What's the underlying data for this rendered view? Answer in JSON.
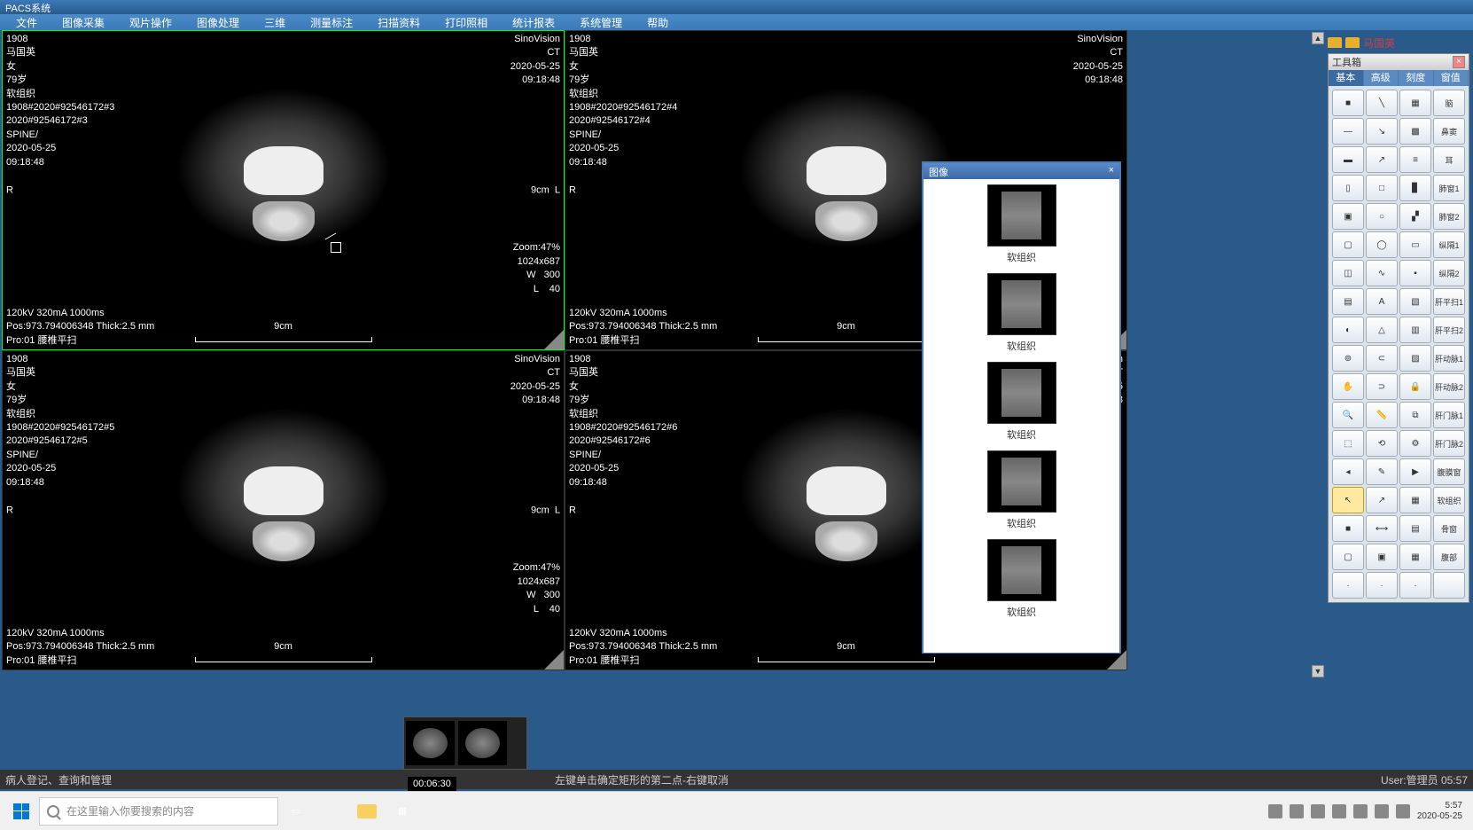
{
  "app": {
    "title": "PACS系统"
  },
  "menu": [
    "文件",
    "图像采集",
    "观片操作",
    "图像处理",
    "三维",
    "测量标注",
    "扫描资料",
    "打印照相",
    "统计报表",
    "系统管理",
    "帮助"
  ],
  "panels": [
    {
      "id": "1908",
      "patient": "马国英",
      "sex": "女",
      "age": "79岁",
      "tissue": "软组织",
      "series": "1908#2020#92546172#3",
      "study": "2020#92546172#3",
      "part": "SPINE/",
      "date": "2020-05-25",
      "time": "09:18:48",
      "vendor": "SinoVision",
      "modality": "CT",
      "scan_date": "2020-05-25",
      "scan_time": "09:18:48",
      "side_l": "R",
      "side_r": "9cm  L",
      "zoom": "Zoom:47%",
      "matrix": "1024x687",
      "ww": "W   300",
      "wl": "L    40",
      "tech": "120kV 320mA 1000ms",
      "pos": "Pos:973.794006348 Thick:2.5 mm",
      "proto": "Pro:01 腰椎平扫",
      "scale": "9cm"
    },
    {
      "id": "1908",
      "patient": "马国英",
      "sex": "女",
      "age": "79岁",
      "tissue": "软组织",
      "series": "1908#2020#92546172#4",
      "study": "2020#92546172#4",
      "part": "SPINE/",
      "date": "2020-05-25",
      "time": "09:18:48",
      "vendor": "SinoVision",
      "modality": "CT",
      "scan_date": "2020-05-25",
      "scan_time": "09:18:48",
      "side_l": "R",
      "side_r": "",
      "zoom": "",
      "matrix": "",
      "ww": "",
      "wl": "",
      "tech": "120kV 320mA 1000ms",
      "pos": "Pos:973.794006348 Thick:2.5 mm",
      "proto": "Pro:01 腰椎平扫",
      "scale": "9cm"
    },
    {
      "id": "1908",
      "patient": "马国英",
      "sex": "女",
      "age": "79岁",
      "tissue": "软组织",
      "series": "1908#2020#92546172#5",
      "study": "2020#92546172#5",
      "part": "SPINE/",
      "date": "2020-05-25",
      "time": "09:18:48",
      "vendor": "SinoVision",
      "modality": "CT",
      "scan_date": "2020-05-25",
      "scan_time": "09:18:48",
      "side_l": "R",
      "side_r": "9cm  L",
      "zoom": "Zoom:47%",
      "matrix": "1024x687",
      "ww": "W   300",
      "wl": "L    40",
      "tech": "120kV 320mA 1000ms",
      "pos": "Pos:973.794006348 Thick:2.5 mm",
      "proto": "Pro:01 腰椎平扫",
      "scale": "9cm"
    },
    {
      "id": "1908",
      "patient": "马国英",
      "sex": "女",
      "age": "79岁",
      "tissue": "软组织",
      "series": "1908#2020#92546172#6",
      "study": "2020#92546172#6",
      "part": "SPINE/",
      "date": "2020-05-25",
      "time": "09:18:48",
      "vendor": "SinoVision",
      "modality": "CT",
      "scan_date": "2020-05-25",
      "scan_time": "09:18:48",
      "side_l": "R",
      "side_r": "",
      "zoom": "",
      "matrix": "",
      "ww": "",
      "wl": "",
      "tech": "120kV 320mA 1000ms",
      "pos": "Pos:973.794006348 Thick:2.5 mm",
      "proto": "Pro:01 腰椎平扫",
      "scale": "9cm"
    }
  ],
  "toolbox": {
    "title": "工具箱",
    "tabs": [
      "基本",
      "高级",
      "刻度",
      "窗值"
    ],
    "presets": [
      "脑",
      "鼻窦",
      "耳",
      "肺窗1",
      "肺窗2",
      "纵隔1",
      "纵隔2",
      "肝平扫1",
      "肝平扫2",
      "肝动脉1",
      "肝动脉2",
      "肝门脉1",
      "肝门脉2",
      "腹膜窗",
      "软组织",
      "骨窗",
      "腹部",
      ""
    ]
  },
  "browser": {
    "title": "图像",
    "thumbs": [
      "软组织",
      "软组织",
      "软组织",
      "软组织",
      "软组织"
    ]
  },
  "folder": {
    "label": "马国英"
  },
  "status": {
    "left": "病人登记、查询和管理",
    "hint": "左键单击确定矩形的第二点-右键取消",
    "user": "User:管理员    05:57"
  },
  "time_badge": "00:06:30",
  "taskbar": {
    "search_placeholder": "在这里输入你要搜索的内容",
    "clock_time": "5:57",
    "clock_date": "2020-05-25"
  }
}
